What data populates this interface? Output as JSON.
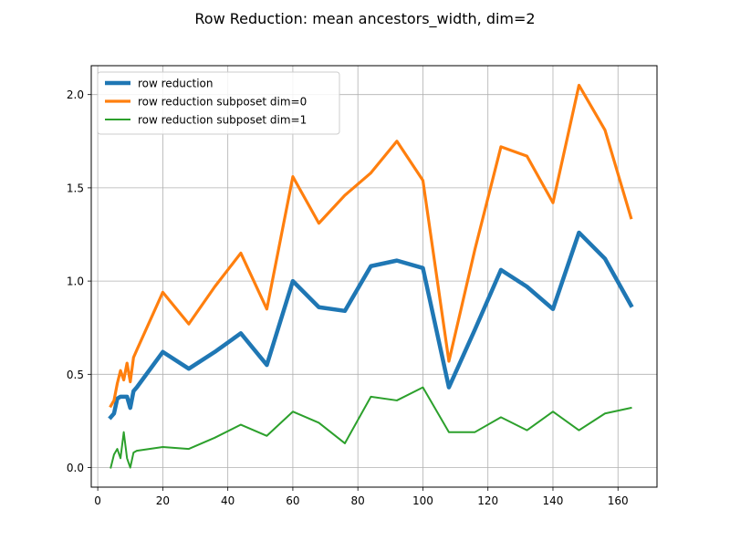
{
  "chart_data": {
    "type": "line",
    "title": "Row Reduction: mean ancestors_width, dim=2",
    "xlabel": "",
    "ylabel": "",
    "xlim": [
      -2,
      172
    ],
    "ylim": [
      -0.105,
      2.155
    ],
    "xticks": [
      0,
      20,
      40,
      60,
      80,
      100,
      120,
      140,
      160
    ],
    "yticks": [
      0.0,
      0.5,
      1.0,
      1.5,
      2.0
    ],
    "xtick_labels": [
      "0",
      "20",
      "40",
      "60",
      "80",
      "100",
      "120",
      "140",
      "160"
    ],
    "ytick_labels": [
      "0.0",
      "0.5",
      "1.0",
      "1.5",
      "2.0"
    ],
    "grid": true,
    "legend_position": "top-left",
    "series": [
      {
        "name": "row reduction",
        "color": "#1f77b4",
        "width": "thick",
        "points": [
          [
            4,
            0.27
          ],
          [
            5,
            0.29
          ],
          [
            6,
            0.37
          ],
          [
            7,
            0.38
          ],
          [
            8,
            0.38
          ],
          [
            9,
            0.38
          ],
          [
            10,
            0.32
          ],
          [
            11,
            0.41
          ],
          [
            12,
            0.43
          ],
          [
            20,
            0.62
          ],
          [
            28,
            0.53
          ],
          [
            36,
            0.62
          ],
          [
            44,
            0.72
          ],
          [
            52,
            0.55
          ],
          [
            60,
            1.0
          ],
          [
            68,
            0.86
          ],
          [
            76,
            0.84
          ],
          [
            84,
            1.08
          ],
          [
            92,
            1.11
          ],
          [
            100,
            1.07
          ],
          [
            108,
            0.43
          ],
          [
            116,
            0.74
          ],
          [
            124,
            1.06
          ],
          [
            132,
            0.97
          ],
          [
            140,
            0.85
          ],
          [
            148,
            1.26
          ],
          [
            156,
            1.12
          ],
          [
            164,
            0.87
          ]
        ]
      },
      {
        "name": "row reduction subposet dim=0",
        "color": "#ff7f0e",
        "width": "medium",
        "points": [
          [
            4,
            0.33
          ],
          [
            5,
            0.36
          ],
          [
            6,
            0.45
          ],
          [
            7,
            0.52
          ],
          [
            8,
            0.47
          ],
          [
            9,
            0.56
          ],
          [
            10,
            0.46
          ],
          [
            11,
            0.59
          ],
          [
            12,
            0.63
          ],
          [
            20,
            0.94
          ],
          [
            28,
            0.77
          ],
          [
            36,
            0.97
          ],
          [
            44,
            1.15
          ],
          [
            52,
            0.85
          ],
          [
            60,
            1.56
          ],
          [
            68,
            1.31
          ],
          [
            76,
            1.46
          ],
          [
            84,
            1.58
          ],
          [
            92,
            1.75
          ],
          [
            100,
            1.54
          ],
          [
            108,
            0.57
          ],
          [
            116,
            1.17
          ],
          [
            124,
            1.72
          ],
          [
            132,
            1.67
          ],
          [
            140,
            1.42
          ],
          [
            148,
            2.05
          ],
          [
            156,
            1.81
          ],
          [
            164,
            1.34
          ]
        ]
      },
      {
        "name": "row reduction subposet dim=1",
        "color": "#2ca02c",
        "width": "thin",
        "points": [
          [
            4,
            0.0
          ],
          [
            5,
            0.07
          ],
          [
            6,
            0.1
          ],
          [
            7,
            0.05
          ],
          [
            8,
            0.19
          ],
          [
            9,
            0.05
          ],
          [
            10,
            0.0
          ],
          [
            11,
            0.08
          ],
          [
            12,
            0.09
          ],
          [
            20,
            0.11
          ],
          [
            28,
            0.1
          ],
          [
            36,
            0.16
          ],
          [
            44,
            0.23
          ],
          [
            52,
            0.17
          ],
          [
            60,
            0.3
          ],
          [
            68,
            0.24
          ],
          [
            76,
            0.13
          ],
          [
            84,
            0.38
          ],
          [
            92,
            0.36
          ],
          [
            100,
            0.43
          ],
          [
            108,
            0.19
          ],
          [
            116,
            0.19
          ],
          [
            124,
            0.27
          ],
          [
            132,
            0.2
          ],
          [
            140,
            0.3
          ],
          [
            148,
            0.2
          ],
          [
            156,
            0.29
          ],
          [
            164,
            0.32
          ]
        ]
      }
    ]
  }
}
